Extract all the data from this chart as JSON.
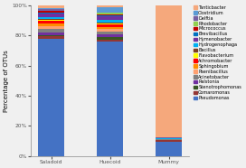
{
  "categories": [
    "Saladoid",
    "Huecoid",
    "Mummy"
  ],
  "ylabel": "Percentage of OTUs",
  "yticks": [
    0,
    20,
    40,
    60,
    80,
    100
  ],
  "ytick_labels": [
    "0%",
    "20%",
    "40%",
    "60%",
    "80%",
    "100%"
  ],
  "legend_entries": [
    "Tanticbacter",
    "Clostridium",
    "Delftia",
    "Rhodobacter",
    "Micrococcus",
    "Brevibacillus",
    "Hymenobacter",
    "Hydrogenophaga",
    "Bacillus",
    "Flavobacterium",
    "Achromobacter",
    "Sphingobium",
    "Paenibacillus",
    "Acinetobacter",
    "Ralstonia",
    "Stenotrophomonas",
    "Comaromonas",
    "Pseudomonas"
  ],
  "colors": [
    "#F5A87C",
    "#5B9BD5",
    "#7660A2",
    "#92D050",
    "#C00000",
    "#0070C0",
    "#7030A0",
    "#00B0F0",
    "#7B3F20",
    "#FFFF00",
    "#FF0000",
    "#FF8C00",
    "#FFA070",
    "#808080",
    "#7030A0",
    "#375623",
    "#943634",
    "#4472C4"
  ],
  "data": {
    "Saladoid": [
      2.0,
      0.5,
      0.8,
      0.5,
      1.2,
      0.5,
      2.0,
      1.2,
      0.8,
      0.5,
      2.0,
      1.5,
      2.0,
      2.5,
      1.5,
      1.0,
      1.5,
      78.0
    ],
    "Huecoid": [
      1.0,
      3.5,
      0.5,
      1.0,
      0.5,
      0.8,
      2.0,
      2.0,
      0.5,
      0.5,
      2.0,
      1.2,
      2.0,
      1.5,
      2.0,
      1.5,
      1.5,
      76.0
    ],
    "Mummy": [
      87.5,
      0.2,
      0.2,
      0.1,
      0.1,
      0.1,
      0.1,
      0.1,
      0.1,
      0.1,
      0.1,
      0.1,
      0.1,
      0.1,
      0.2,
      0.3,
      0.8,
      9.6
    ]
  },
  "figsize": [
    2.72,
    1.86
  ],
  "dpi": 100,
  "legend_fontsize": 3.6,
  "axis_fontsize": 5.0,
  "tick_fontsize": 4.2,
  "bar_width": 0.45,
  "bg_color": "#f0f0f0"
}
